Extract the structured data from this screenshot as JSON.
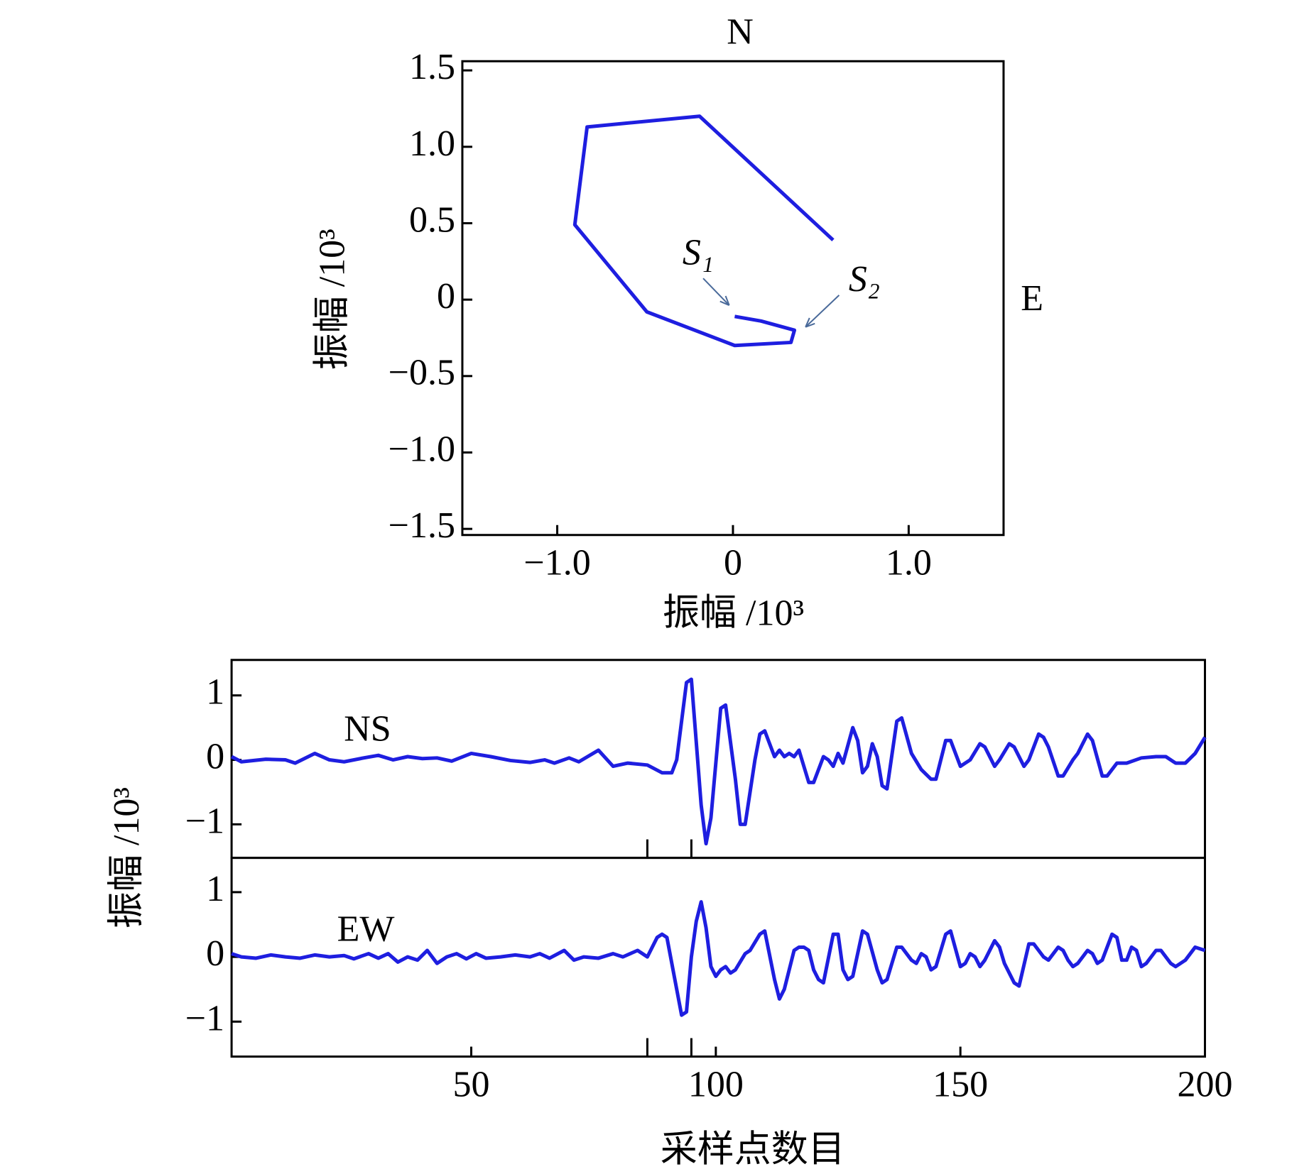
{
  "chart_data": [
    {
      "type": "line",
      "xlabel": "振幅 /10³",
      "ylabel": "振幅 /10³",
      "annotations": [
        "N",
        "E",
        "S₁",
        "S₂"
      ],
      "x": [
        0.01,
        0.16,
        0.35,
        0.33,
        0.01,
        -0.49,
        -0.9,
        -0.83,
        -0.19,
        0.57
      ],
      "values": [
        -0.11,
        -0.14,
        -0.2,
        -0.28,
        -0.3,
        -0.08,
        0.49,
        1.13,
        1.2,
        0.39
      ],
      "color": "#1e1ee0",
      "xlim": [
        -1.54,
        1.54
      ],
      "ylim": [
        -1.54,
        1.56
      ],
      "xticks": [
        {
          "value": -1.0,
          "label": "−1.0"
        },
        0,
        {
          "value": 1.0,
          "label": "1.0"
        }
      ],
      "yticks": [
        {
          "value": -1.5,
          "label": "−1.5"
        },
        {
          "value": -1.0,
          "label": "−1.0"
        },
        {
          "value": -0.5,
          "label": "−0.5"
        },
        0,
        0.5,
        {
          "value": 1.0,
          "label": "1.0"
        },
        1.5
      ]
    },
    {
      "type": "line",
      "ylabel": "振幅 /10³",
      "x": [
        1,
        3,
        8,
        12,
        14,
        18,
        21,
        24,
        28,
        31,
        34,
        37,
        40,
        43,
        46,
        50,
        54,
        58,
        62,
        65,
        67,
        70,
        72,
        76,
        79,
        82,
        86,
        89,
        91,
        92,
        94,
        95,
        97,
        98,
        99,
        101,
        102,
        104,
        105,
        106,
        108,
        109,
        110,
        111,
        112,
        113,
        114,
        115,
        116,
        117,
        119,
        120,
        122,
        123,
        124,
        125,
        126,
        128,
        129,
        130,
        131,
        132,
        133,
        134,
        135,
        137,
        138,
        140,
        142,
        144,
        145,
        147,
        148,
        150,
        151,
        152,
        154,
        155,
        157,
        158,
        160,
        161,
        163,
        164,
        166,
        167,
        168,
        170,
        171,
        173,
        174,
        176,
        177,
        179,
        180,
        182,
        184,
        187,
        190,
        192,
        194,
        196,
        198,
        200
      ],
      "series": [
        {
          "name": "NS",
          "color": "#1e1ee0",
          "values": [
            0.05,
            -0.03,
            0.01,
            0,
            -0.05,
            0.1,
            0,
            -0.03,
            0.03,
            0.07,
            0,
            0.05,
            0.02,
            0.03,
            -0.02,
            0.1,
            0.05,
            -0.01,
            -0.04,
            0,
            -0.05,
            0.03,
            -0.03,
            0.15,
            -0.1,
            -0.05,
            -0.08,
            -0.2,
            -0.2,
            0,
            1.2,
            1.25,
            -0.7,
            -1.3,
            -0.9,
            0.8,
            0.85,
            -0.3,
            -1.0,
            -1.0,
            0,
            0.4,
            0.45,
            0.25,
            0.05,
            0.15,
            0.05,
            0.1,
            0.05,
            0.15,
            -0.35,
            -0.35,
            0.05,
            0,
            -0.1,
            0.1,
            -0.05,
            0.5,
            0.3,
            -0.2,
            -0.1,
            0.25,
            0.05,
            -0.4,
            -0.45,
            0.6,
            0.65,
            0.1,
            -0.15,
            -0.3,
            -0.3,
            0.3,
            0.3,
            -0.1,
            -0.05,
            0,
            0.25,
            0.2,
            -0.1,
            0,
            0.25,
            0.2,
            -0.1,
            0,
            0.4,
            0.35,
            0.2,
            -0.25,
            -0.25,
            0,
            0.1,
            0.4,
            0.3,
            -0.25,
            -0.25,
            -0.05,
            -0.05,
            0.03,
            0.05,
            0.05,
            -0.05,
            -0.05,
            0.1,
            0.35
          ]
        }
      ],
      "markers": [
        86,
        95
      ],
      "xlim": [
        1,
        200
      ],
      "ylim": [
        -1.52,
        1.55
      ],
      "yticks": [
        {
          "value": -1,
          "label": "−1"
        },
        0,
        1
      ]
    },
    {
      "type": "line",
      "xlabel": "采样点数目",
      "x": [
        1,
        3,
        6,
        9,
        12,
        15,
        18,
        21,
        24,
        26,
        29,
        31,
        33,
        35,
        37,
        39,
        41,
        43,
        45,
        47,
        49,
        51,
        53,
        56,
        59,
        62,
        64,
        66,
        69,
        71,
        73,
        76,
        79,
        81,
        84,
        86,
        88,
        89,
        90,
        92,
        93,
        94,
        95,
        96,
        97,
        98,
        99,
        100,
        101,
        102,
        103,
        104,
        106,
        107,
        109,
        110,
        112,
        113,
        114,
        116,
        117,
        118,
        119,
        120,
        121,
        122,
        124,
        125,
        126,
        127,
        128,
        130,
        131,
        133,
        134,
        135,
        137,
        138,
        140,
        141,
        142,
        143,
        144,
        145,
        147,
        148,
        150,
        151,
        152,
        153,
        154,
        155,
        157,
        158,
        159,
        161,
        162,
        164,
        165,
        167,
        168,
        169,
        170,
        171,
        172,
        173,
        174,
        176,
        177,
        178,
        179,
        181,
        182,
        183,
        184,
        185,
        186,
        187,
        188,
        190,
        191,
        193,
        194,
        196,
        198,
        200
      ],
      "series": [
        {
          "name": "EW",
          "color": "#1e1ee0",
          "values": [
            0.05,
            0,
            -0.02,
            0.03,
            0,
            -0.02,
            0.03,
            0,
            0.02,
            -0.03,
            0.05,
            -0.02,
            0.05,
            -0.08,
            0,
            -0.05,
            0.1,
            -0.1,
            0,
            0.05,
            -0.03,
            0.05,
            -0.02,
            0,
            0.03,
            0,
            0.05,
            -0.02,
            0.1,
            -0.05,
            0,
            -0.02,
            0.05,
            0,
            0.1,
            0,
            0.3,
            0.35,
            0.3,
            -0.5,
            -0.9,
            -0.85,
            0,
            0.55,
            0.85,
            0.45,
            -0.15,
            -0.3,
            -0.2,
            -0.15,
            -0.25,
            -0.2,
            0.05,
            0.1,
            0.35,
            0.4,
            -0.35,
            -0.65,
            -0.5,
            0.1,
            0.15,
            0.15,
            0.1,
            -0.2,
            -0.35,
            -0.4,
            0.35,
            0.35,
            -0.2,
            -0.35,
            -0.3,
            0.4,
            0.35,
            -0.2,
            -0.4,
            -0.35,
            0.15,
            0.15,
            -0.05,
            -0.1,
            0.05,
            0,
            -0.2,
            -0.15,
            0.35,
            0.4,
            -0.15,
            -0.1,
            0.05,
            0,
            -0.15,
            -0.05,
            0.25,
            0.15,
            -0.1,
            -0.4,
            -0.45,
            0.2,
            0.2,
            0,
            -0.05,
            0.05,
            0.15,
            0.1,
            -0.05,
            -0.15,
            -0.1,
            0.1,
            0.05,
            -0.1,
            -0.05,
            0.35,
            0.3,
            -0.05,
            -0.05,
            0.15,
            0.1,
            -0.15,
            -0.1,
            0.1,
            0.1,
            -0.1,
            -0.15,
            -0.05,
            0.15,
            0.1
          ]
        }
      ],
      "markers": [
        86,
        95
      ],
      "xlim": [
        1,
        200
      ],
      "ylim": [
        -1.54,
        1.53
      ],
      "xticks": [
        50,
        100,
        150,
        200
      ],
      "yticks": [
        {
          "value": -1,
          "label": "−1"
        },
        0,
        1
      ]
    }
  ]
}
